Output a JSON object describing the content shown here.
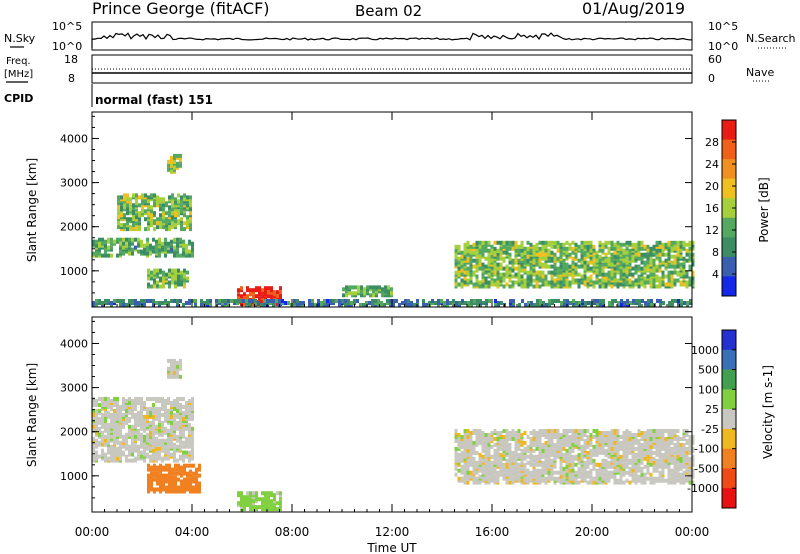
{
  "header": {
    "station": "Prince George (fitACF)",
    "beam": "Beam 02",
    "date": "01/Aug/2019"
  },
  "top_panels": {
    "nsky_label": "N.Sky",
    "nsearch_label": "N.Search",
    "nsky_ticks": [
      "10^5",
      "10^0"
    ],
    "nsearch_ticks": [
      "10^5",
      "10^0"
    ],
    "freq_label_1": "Freq.",
    "freq_label_2": "[MHz]",
    "freq_ticks": [
      "18",
      "8"
    ],
    "nave_label": "Nave",
    "nave_ticks": [
      "60",
      "0"
    ],
    "cpid_label": "CPID",
    "cpid_value": "normal (fast) 151"
  },
  "colors": {
    "power": [
      "#1428e8",
      "#3a5fb0",
      "#3c8c64",
      "#55a860",
      "#a6cf3c",
      "#f0c020",
      "#f09020",
      "#f06018",
      "#e81c14"
    ],
    "velocity": [
      "#2430d0",
      "#3a70b8",
      "#40a050",
      "#80d040",
      "#c8c8c0",
      "#f0b820",
      "#f08020",
      "#f04a18",
      "#e81010"
    ]
  },
  "chart_data": [
    {
      "type": "heatmap",
      "title": "",
      "xlabel": "",
      "ylabel": "Slant Range [km]",
      "x_range": [
        "00:00",
        "24:00"
      ],
      "ylim": [
        180,
        4600
      ],
      "y_ticks": [
        "1000",
        "2000",
        "3000",
        "4000"
      ],
      "colorbar": {
        "label": "Power [dB]",
        "range": [
          0,
          32
        ],
        "ticks": [
          "4",
          "8",
          "12",
          "16",
          "20",
          "24",
          "28"
        ]
      },
      "echo_regions": [
        {
          "t_start": 0.0,
          "t_end": 4.0,
          "range_start": 1300,
          "range_end": 1700,
          "power": 12
        },
        {
          "t_start": 1.0,
          "t_end": 4.0,
          "range_start": 1900,
          "range_end": 2700,
          "power": 14
        },
        {
          "t_start": 2.2,
          "t_end": 3.8,
          "range_start": 600,
          "range_end": 1000,
          "power": 13
        },
        {
          "t_start": 3.0,
          "t_end": 3.5,
          "range_start": 3200,
          "range_end": 3600,
          "power": 16
        },
        {
          "t_start": 5.8,
          "t_end": 7.5,
          "range_start": 200,
          "range_end": 600,
          "power": 30
        },
        {
          "t_start": 10.0,
          "t_end": 12.0,
          "range_start": 400,
          "range_end": 600,
          "power": 12
        },
        {
          "t_start": 14.5,
          "t_end": 24.0,
          "range_start": 600,
          "range_end": 1600,
          "power": 14
        },
        {
          "t_start": 0.0,
          "t_end": 24.0,
          "range_start": 180,
          "range_end": 300,
          "power": 8
        }
      ]
    },
    {
      "type": "heatmap",
      "title": "",
      "xlabel": "Time UT",
      "ylabel": "Slant Range [km]",
      "x_ticks": [
        "00:00",
        "04:00",
        "08:00",
        "12:00",
        "16:00",
        "20:00",
        "00:00"
      ],
      "ylim": [
        180,
        4600
      ],
      "y_ticks": [
        "1000",
        "2000",
        "3000",
        "4000"
      ],
      "colorbar": {
        "label": "Velocity [m s-1]",
        "ticks": [
          "1000",
          "500",
          "100",
          "25",
          "-25",
          "-100",
          "-500",
          "-1000"
        ]
      },
      "echo_regions": [
        {
          "t_start": 0.0,
          "t_end": 4.0,
          "range_start": 1300,
          "range_end": 2700,
          "velocity": 0
        },
        {
          "t_start": 2.2,
          "t_end": 4.3,
          "range_start": 600,
          "range_end": 1200,
          "velocity": -150
        },
        {
          "t_start": 3.0,
          "t_end": 3.5,
          "range_start": 3200,
          "range_end": 3600,
          "velocity": 0
        },
        {
          "t_start": 5.8,
          "t_end": 7.5,
          "range_start": 200,
          "range_end": 600,
          "velocity": 50
        },
        {
          "t_start": 14.5,
          "t_end": 24.0,
          "range_start": 800,
          "range_end": 2000,
          "velocity": 0
        }
      ]
    }
  ]
}
